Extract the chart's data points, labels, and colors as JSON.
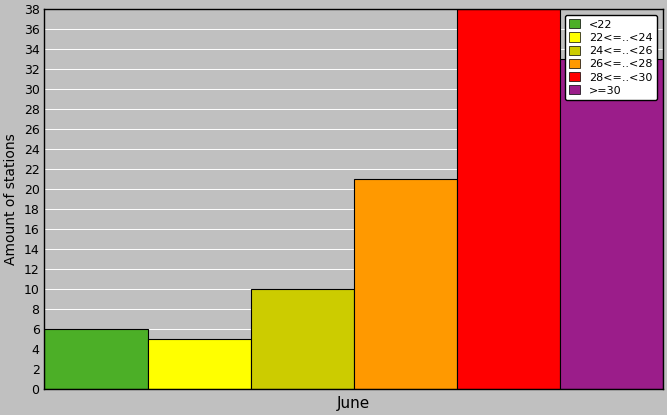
{
  "categories": [
    "<22",
    "22<=..<24",
    "24<=..<26",
    "26<=..<28",
    "28<=..<30",
    ">=30"
  ],
  "values": [
    6,
    5,
    10,
    21,
    38,
    33
  ],
  "colors": [
    "#4caf27",
    "#ffff00",
    "#cccc00",
    "#ff9900",
    "#ff0000",
    "#9b1d8a"
  ],
  "xlabel": "June",
  "ylabel": "Amount of stations",
  "ylim": [
    0,
    38
  ],
  "yticks": [
    0,
    2,
    4,
    6,
    8,
    10,
    12,
    14,
    16,
    18,
    20,
    22,
    24,
    26,
    28,
    30,
    32,
    34,
    36,
    38
  ],
  "bg_color": "#c0c0c0",
  "bar_width": 1.0,
  "figwidth": 6.67,
  "figheight": 4.15
}
